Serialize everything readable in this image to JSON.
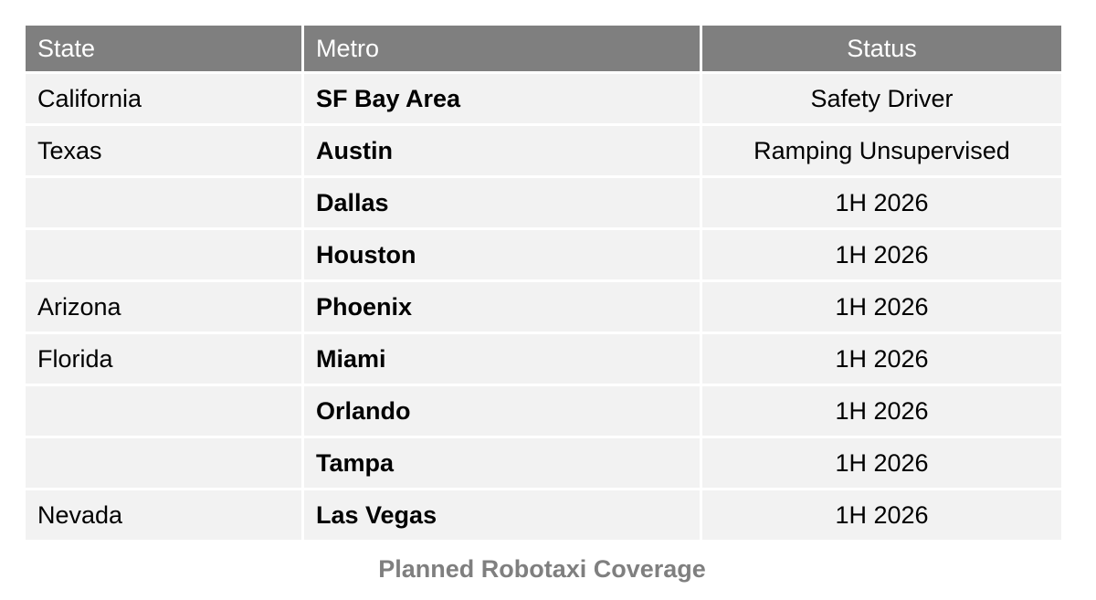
{
  "chart_data": {
    "type": "table",
    "title": "Planned Robotaxi Coverage",
    "columns": [
      "State",
      "Metro",
      "Status"
    ],
    "column_aligns": [
      "left",
      "left",
      "center"
    ],
    "rows": [
      [
        "California",
        "SF Bay Area",
        "Safety Driver"
      ],
      [
        "Texas",
        "Austin",
        "Ramping Unsupervised"
      ],
      [
        "",
        "Dallas",
        "1H 2026"
      ],
      [
        "",
        "Houston",
        "1H 2026"
      ],
      [
        "Arizona",
        "Phoenix",
        "1H 2026"
      ],
      [
        "Florida",
        "Miami",
        "1H 2026"
      ],
      [
        "",
        "Orlando",
        "1H 2026"
      ],
      [
        "",
        "Tampa",
        "1H 2026"
      ],
      [
        "Nevada",
        "Las Vegas",
        "1H 2026"
      ]
    ],
    "legend": null,
    "grid": false
  },
  "colors": {
    "header_bg": "#7f7f7f",
    "header_text": "#ffffff",
    "row_bg": "#f2f2f2",
    "body_text": "#000000",
    "divider": "#ffffff",
    "caption_text": "#7f7f7f",
    "page_bg": "#ffffff"
  }
}
